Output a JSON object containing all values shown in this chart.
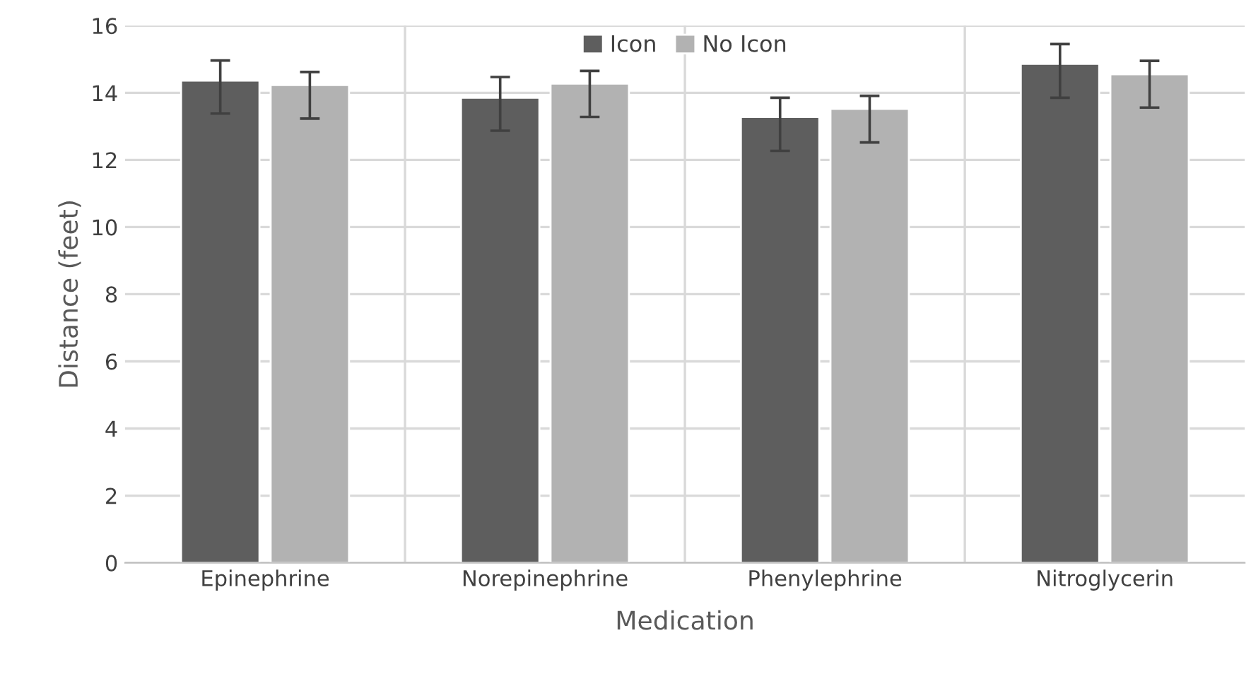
{
  "chart_data": {
    "type": "bar",
    "xlabel": "Medication",
    "ylabel": "Distance (feet)",
    "categories": [
      "Epinephrine",
      "Norepinephrine",
      "Phenylephrine",
      "Nitroglycerin"
    ],
    "series": [
      {
        "name": "Icon",
        "color": "#5e5e5e",
        "values": [
          14.36,
          13.85,
          13.28,
          14.86
        ],
        "errors": [
          [
            13.38,
            14.96
          ],
          [
            12.87,
            14.47
          ],
          [
            12.27,
            13.85
          ],
          [
            13.85,
            15.45
          ]
        ]
      },
      {
        "name": "No Icon",
        "color": "#b2b2b2",
        "values": [
          14.23,
          14.27,
          13.52,
          14.55
        ],
        "errors": [
          [
            13.23,
            14.62
          ],
          [
            13.28,
            14.65
          ],
          [
            12.52,
            13.91
          ],
          [
            13.56,
            14.95
          ]
        ]
      }
    ],
    "ylim": [
      0,
      16
    ],
    "yticks": [
      0,
      2,
      4,
      6,
      8,
      10,
      12,
      14,
      16
    ],
    "grid": true,
    "legend": "top"
  }
}
